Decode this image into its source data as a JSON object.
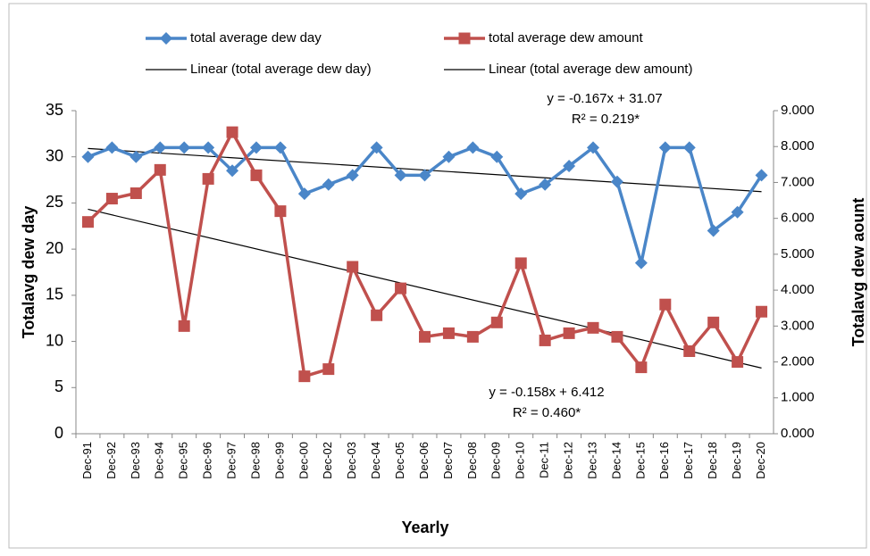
{
  "chart_data": {
    "type": "line",
    "x_label": "Yearly",
    "y_label": "Totalavg dew day",
    "y2_label": "Totalavg dew aount",
    "categories": [
      "Dec-91",
      "Dec-92",
      "Dec-93",
      "Dec-94",
      "Dec-95",
      "Dec-96",
      "Dec-97",
      "Dec-98",
      "Dec-99",
      "Dec-00",
      "Dec-02",
      "Dec-03",
      "Dec-04",
      "Dec-05",
      "Dec-06",
      "Dec-07",
      "Dec-08",
      "Dec-09",
      "Dec-10",
      "Dec-11",
      "Dec-12",
      "Dec-13",
      "Dec-14",
      "Dec-15",
      "Dec-16",
      "Dec-17",
      "Dec-18",
      "Dec-19",
      "Dec-20"
    ],
    "series": [
      {
        "name": "total average dew day",
        "color": "#4a86c8",
        "marker": "diamond",
        "values": [
          30,
          31,
          30,
          31,
          31,
          31,
          28.5,
          31,
          31,
          26,
          27,
          28,
          31,
          28,
          28,
          30,
          31,
          30,
          26,
          27,
          29,
          31,
          27.3,
          18.5,
          31,
          31,
          22,
          24,
          28
        ]
      },
      {
        "name": "total average dew amount",
        "color": "#c0504d",
        "marker": "square",
        "axis": "y2",
        "values": [
          5.9,
          6.55,
          6.7,
          7.35,
          3.0,
          7.1,
          8.4,
          7.2,
          6.2,
          1.6,
          1.8,
          4.65,
          3.3,
          4.05,
          2.7,
          2.8,
          2.7,
          3.1,
          4.75,
          2.6,
          2.8,
          2.95,
          2.7,
          1.85,
          3.6,
          2.3,
          3.1,
          2.0,
          3.4
        ]
      }
    ],
    "trendlines": [
      {
        "name": "Linear (total average dew day)",
        "color": "#000000",
        "slope": -0.167,
        "intercept": 31.07,
        "equation": "y = -0.167x + 31.07",
        "r2": "R² = 0.219*"
      },
      {
        "name": "Linear (total average dew amount)",
        "color": "#000000",
        "axis": "y2",
        "slope": -0.158,
        "intercept": 6.412,
        "equation": "y = -0.158x + 6.412",
        "r2": "R² = 0.460*"
      }
    ],
    "ylim": [
      0,
      35
    ],
    "yticks": [
      0,
      5,
      10,
      15,
      20,
      25,
      30,
      35
    ],
    "y2lim": [
      0,
      9
    ],
    "y2ticks": [
      {
        "value": 0,
        "label": "0.000"
      },
      {
        "value": 1,
        "label": "1.000"
      },
      {
        "value": 2,
        "label": "2.000"
      },
      {
        "value": 3,
        "label": "3.000"
      },
      {
        "value": 4,
        "label": "4.000"
      },
      {
        "value": 5,
        "label": "5.000"
      },
      {
        "value": 6,
        "label": "6.000"
      },
      {
        "value": 7,
        "label": "7.000"
      },
      {
        "value": 8,
        "label": "8.000"
      },
      {
        "value": 9,
        "label": "9.000"
      }
    ],
    "grid": false
  }
}
